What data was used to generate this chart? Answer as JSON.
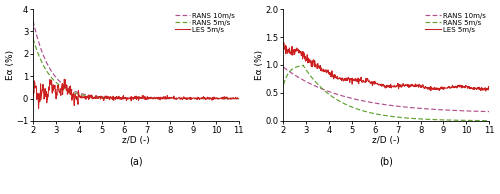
{
  "subplot_a": {
    "title": "(a)",
    "xlabel": "z/D (-)",
    "ylabel": "Eα (%)",
    "xlim": [
      2,
      11
    ],
    "ylim": [
      -1,
      4
    ],
    "yticks": [
      -1,
      0,
      1,
      2,
      3,
      4
    ],
    "xticks": [
      2,
      3,
      4,
      5,
      6,
      7,
      8,
      9,
      10,
      11
    ],
    "rans10_color": "#b05090",
    "rans5_color": "#60a030",
    "les_color": "#cc2020",
    "legend_labels": [
      "RANS 10m/s",
      "RANS 5m/s",
      "LES 5m/s"
    ]
  },
  "subplot_b": {
    "title": "(b)",
    "xlabel": "z/D (-)",
    "ylabel": "Eα (%)",
    "xlim": [
      2,
      11
    ],
    "ylim": [
      0,
      2
    ],
    "yticks": [
      0,
      0.5,
      1.0,
      1.5,
      2.0
    ],
    "xticks": [
      2,
      3,
      4,
      5,
      6,
      7,
      8,
      9,
      10,
      11
    ],
    "rans10_color": "#b05090",
    "rans5_color": "#60a030",
    "les_color": "#cc2020",
    "legend_labels": [
      "RANS 10m/s",
      "RANS 5m/s",
      "LES 5m/s"
    ]
  },
  "background_color": "#ffffff",
  "figure_bg": "#ffffff"
}
